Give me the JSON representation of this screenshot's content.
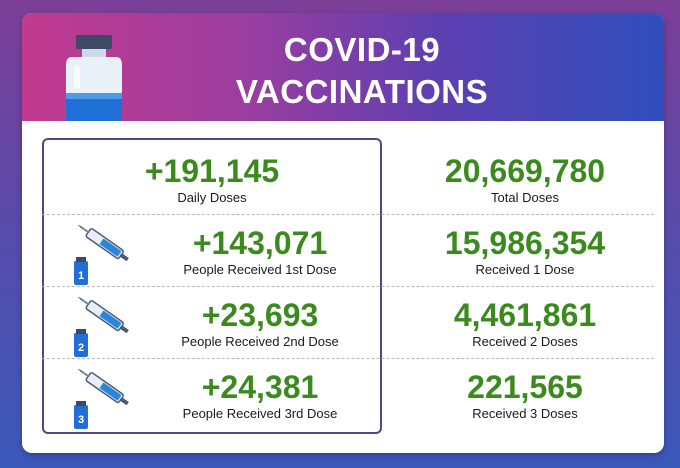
{
  "title": {
    "line1": "COVID-19",
    "line2": "VACCINATIONS"
  },
  "colors": {
    "number_green": "#3a8a1e",
    "box_border": "#4b4a86"
  },
  "left": [
    {
      "value": "+191,145",
      "label": "Daily Doses"
    },
    {
      "value": "+143,071",
      "label": "People Received 1st Dose",
      "icon": "1"
    },
    {
      "value": "+23,693",
      "label": "People Received 2nd Dose",
      "icon": "2"
    },
    {
      "value": "+24,381",
      "label": "People Received 3rd Dose",
      "icon": "3"
    }
  ],
  "right": [
    {
      "value": "20,669,780",
      "label": "Total Doses"
    },
    {
      "value": "15,986,354",
      "label": "Received 1 Dose"
    },
    {
      "value": "4,461,861",
      "label": "Received 2 Doses"
    },
    {
      "value": "221,565",
      "label": "Received 3 Doses"
    }
  ]
}
